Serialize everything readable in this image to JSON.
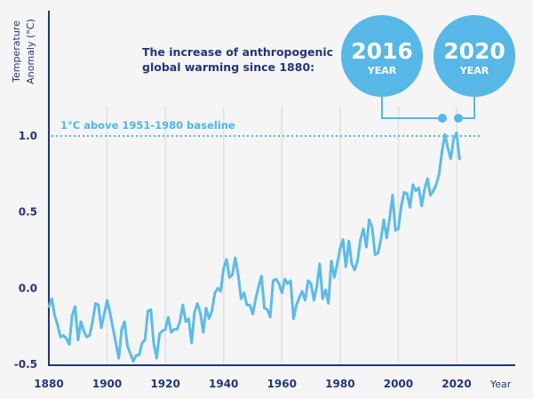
{
  "colors": {
    "series": "#5dbbe8",
    "badge": "#57b7e6",
    "grid": "#e1e1e1",
    "axis": "#24357a",
    "text": "#24357a",
    "baseline": "#4fb6e3"
  },
  "chart_data": {
    "type": "line",
    "title": "The increase of anthropogenic global warming since 1880:",
    "ylabel": "Temperature Anomaly (°C)",
    "xlabel": "Year",
    "xlim": [
      1880,
      2025
    ],
    "ylim": [
      -0.5,
      1.1
    ],
    "xticks": [
      "1880",
      "1900",
      "1920",
      "1940",
      "1960",
      "1980",
      "2000",
      "2020"
    ],
    "yticks": [
      "1.0",
      "0.5",
      "0.0",
      "-0.5"
    ],
    "grid": "vertical",
    "baseline": {
      "value": 1.0,
      "label": "1°C above 1951-1980 baseline"
    },
    "highlights": [
      {
        "year": "2016",
        "sub": "YEAR"
      },
      {
        "year": "2020",
        "sub": "YEAR"
      }
    ],
    "series": [
      {
        "x": [
          1880,
          1881,
          1882,
          1883,
          1884,
          1885,
          1886,
          1887,
          1888,
          1889,
          1890,
          1891,
          1892,
          1893,
          1894,
          1895,
          1896,
          1897,
          1898,
          1899,
          1900,
          1901,
          1902,
          1903,
          1904,
          1905,
          1906,
          1907,
          1908,
          1909,
          1910,
          1911,
          1912,
          1913,
          1914,
          1915,
          1916,
          1917,
          1918,
          1919,
          1920,
          1921,
          1922,
          1923,
          1924,
          1925,
          1926,
          1927,
          1928,
          1929,
          1930,
          1931,
          1932,
          1933,
          1934,
          1935,
          1936,
          1937,
          1938,
          1939,
          1940,
          1941,
          1942,
          1943,
          1944,
          1945,
          1946,
          1947,
          1948,
          1949,
          1950,
          1951,
          1952,
          1953,
          1954,
          1955,
          1956,
          1957,
          1958,
          1959,
          1960,
          1961,
          1962,
          1963,
          1964,
          1965,
          1966,
          1967,
          1968,
          1969,
          1970,
          1971,
          1972,
          1973,
          1974,
          1975,
          1976,
          1977,
          1978,
          1979,
          1980,
          1981,
          1982,
          1983,
          1984,
          1985,
          1986,
          1987,
          1988,
          1989,
          1990,
          1991,
          1992,
          1993,
          1994,
          1995,
          1996,
          1997,
          1998,
          1999,
          2000,
          2001,
          2002,
          2003,
          2004,
          2005,
          2006,
          2007,
          2008,
          2009,
          2010,
          2011,
          2012,
          2013,
          2014,
          2015,
          2016,
          2017,
          2018,
          2019,
          2020,
          2021
        ],
        "values": [
          -0.12,
          -0.07,
          -0.18,
          -0.24,
          -0.32,
          -0.31,
          -0.33,
          -0.37,
          -0.18,
          -0.12,
          -0.34,
          -0.22,
          -0.28,
          -0.32,
          -0.31,
          -0.22,
          -0.1,
          -0.11,
          -0.26,
          -0.17,
          -0.08,
          -0.16,
          -0.26,
          -0.36,
          -0.46,
          -0.27,
          -0.22,
          -0.38,
          -0.43,
          -0.48,
          -0.44,
          -0.44,
          -0.36,
          -0.34,
          -0.15,
          -0.14,
          -0.36,
          -0.46,
          -0.3,
          -0.28,
          -0.27,
          -0.19,
          -0.29,
          -0.27,
          -0.27,
          -0.22,
          -0.11,
          -0.22,
          -0.2,
          -0.36,
          -0.16,
          -0.1,
          -0.16,
          -0.29,
          -0.13,
          -0.2,
          -0.15,
          -0.03,
          0.0,
          -0.02,
          0.13,
          0.19,
          0.07,
          0.09,
          0.2,
          0.09,
          -0.07,
          -0.03,
          -0.11,
          -0.11,
          -0.17,
          -0.07,
          0.01,
          0.08,
          -0.13,
          -0.14,
          -0.19,
          0.05,
          0.06,
          0.03,
          -0.03,
          0.06,
          0.03,
          0.05,
          -0.2,
          -0.11,
          -0.06,
          -0.02,
          -0.08,
          0.05,
          0.03,
          -0.08,
          0.01,
          0.16,
          -0.07,
          -0.01,
          -0.1,
          0.18,
          0.07,
          0.16,
          0.26,
          0.32,
          0.14,
          0.31,
          0.16,
          0.12,
          0.18,
          0.32,
          0.39,
          0.27,
          0.45,
          0.4,
          0.22,
          0.23,
          0.32,
          0.45,
          0.33,
          0.46,
          0.61,
          0.38,
          0.39,
          0.54,
          0.63,
          0.62,
          0.53,
          0.68,
          0.64,
          0.66,
          0.54,
          0.65,
          0.72,
          0.61,
          0.64,
          0.68,
          0.75,
          0.9,
          1.01,
          0.92,
          0.85,
          0.98,
          1.02,
          0.85
        ]
      }
    ]
  }
}
